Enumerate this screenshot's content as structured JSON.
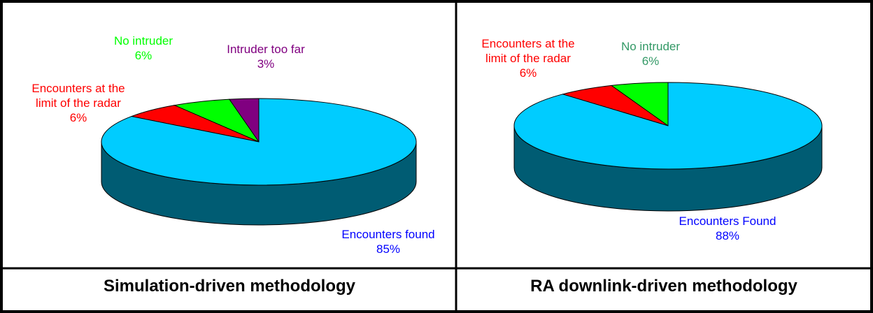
{
  "chart_data": [
    {
      "type": "pie3d",
      "title": "Simulation-driven methodology",
      "categories": [
        "Intruder too far",
        "No intruder",
        "Encounters at the limit of the radar",
        "Encounters found"
      ],
      "values": [
        3,
        6,
        6,
        85
      ],
      "value_labels": [
        "3%",
        "6%",
        "6%",
        "85%"
      ],
      "colors": [
        "#800080",
        "#00ff00",
        "#ff0000",
        "#00ccff"
      ],
      "label_colors": [
        "#800080",
        "#00ff00",
        "#ff0000",
        "#0000ff"
      ]
    },
    {
      "type": "pie3d",
      "title": "RA downlink-driven methodology",
      "categories": [
        "No intruder",
        "Encounters at the limit of the radar",
        "Encounters Found"
      ],
      "values": [
        6,
        6,
        88
      ],
      "value_labels": [
        "6%",
        "6%",
        "88%"
      ],
      "colors": [
        "#00ff00",
        "#ff0000",
        "#00ccff"
      ],
      "label_colors": [
        "#339966",
        "#ff0000",
        "#0000ff"
      ]
    }
  ]
}
